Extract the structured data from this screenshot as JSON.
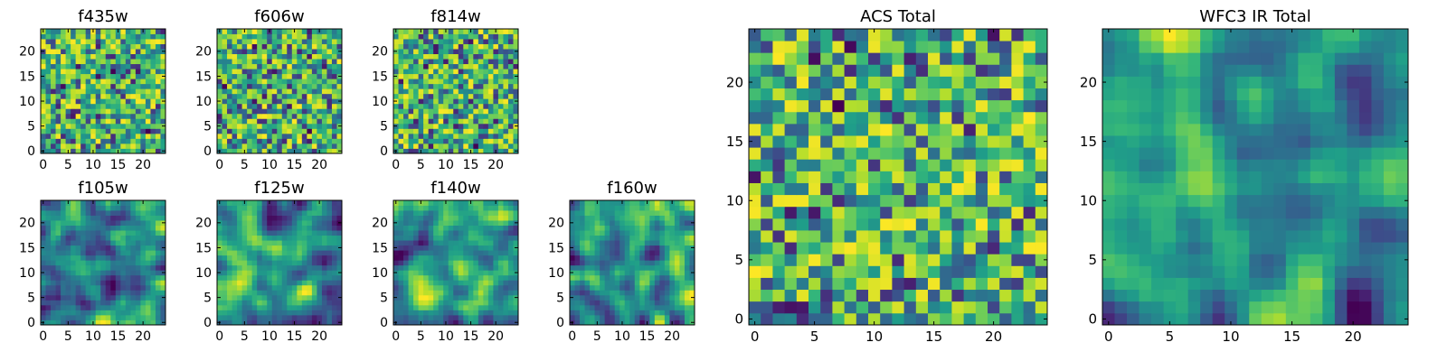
{
  "chart_data": [
    {
      "type": "heatmap",
      "title": "f435w",
      "xticks": [
        "0",
        "5",
        "10",
        "15",
        "20"
      ],
      "yticks": [
        "0",
        "5",
        "10",
        "15",
        "20"
      ],
      "grid": "25x25",
      "range": [
        0,
        24
      ],
      "colormap": "viridis",
      "pattern": "noise",
      "seed": 11
    },
    {
      "type": "heatmap",
      "title": "f606w",
      "xticks": [
        "0",
        "5",
        "10",
        "15",
        "20"
      ],
      "yticks": [
        "0",
        "5",
        "10",
        "15",
        "20"
      ],
      "grid": "25x25",
      "range": [
        0,
        24
      ],
      "colormap": "viridis",
      "pattern": "noise",
      "seed": 23
    },
    {
      "type": "heatmap",
      "title": "f814w",
      "xticks": [
        "0",
        "5",
        "10",
        "15",
        "20"
      ],
      "yticks": [
        "0",
        "5",
        "10",
        "15",
        "20"
      ],
      "grid": "25x25",
      "range": [
        0,
        24
      ],
      "colormap": "viridis",
      "pattern": "noise",
      "seed": 37
    },
    {
      "type": "heatmap",
      "title": "f105w",
      "xticks": [
        "0",
        "5",
        "10",
        "15",
        "20"
      ],
      "yticks": [
        "0",
        "5",
        "10",
        "15",
        "20"
      ],
      "grid": "25x25",
      "range": [
        0,
        24
      ],
      "colormap": "viridis",
      "pattern": "smooth",
      "seed": 41
    },
    {
      "type": "heatmap",
      "title": "f125w",
      "xticks": [
        "0",
        "5",
        "10",
        "15",
        "20"
      ],
      "yticks": [
        "0",
        "5",
        "10",
        "15",
        "20"
      ],
      "grid": "25x25",
      "range": [
        0,
        24
      ],
      "colormap": "viridis",
      "pattern": "smooth",
      "seed": 53
    },
    {
      "type": "heatmap",
      "title": "f140w",
      "xticks": [
        "0",
        "5",
        "10",
        "15",
        "20"
      ],
      "yticks": [
        "0",
        "5",
        "10",
        "15",
        "20"
      ],
      "grid": "25x25",
      "range": [
        0,
        24
      ],
      "colormap": "viridis",
      "pattern": "smooth",
      "seed": 67
    },
    {
      "type": "heatmap",
      "title": "f160w",
      "xticks": [
        "0",
        "5",
        "10",
        "15",
        "20"
      ],
      "yticks": [
        "0",
        "5",
        "10",
        "15",
        "20"
      ],
      "grid": "25x25",
      "range": [
        0,
        24
      ],
      "colormap": "viridis",
      "pattern": "smooth",
      "seed": 79
    },
    {
      "type": "heatmap",
      "title": "ACS Total",
      "xticks": [
        "0",
        "5",
        "10",
        "15",
        "20"
      ],
      "yticks": [
        "0",
        "5",
        "10",
        "15",
        "20"
      ],
      "grid": "25x25",
      "range": [
        0,
        24
      ],
      "colormap": "viridis",
      "pattern": "noise",
      "seed": 97
    },
    {
      "type": "heatmap",
      "title": "WFC3 IR Total",
      "xticks": [
        "0",
        "5",
        "10",
        "15",
        "20"
      ],
      "yticks": [
        "0",
        "5",
        "10",
        "15",
        "20"
      ],
      "grid": "25x25",
      "range": [
        0,
        24
      ],
      "colormap": "viridis",
      "pattern": "smooth",
      "seed": 131
    }
  ],
  "colors": {
    "viridis_low": "#440154",
    "viridis_mid": "#21918c",
    "viridis_high": "#fde725"
  }
}
